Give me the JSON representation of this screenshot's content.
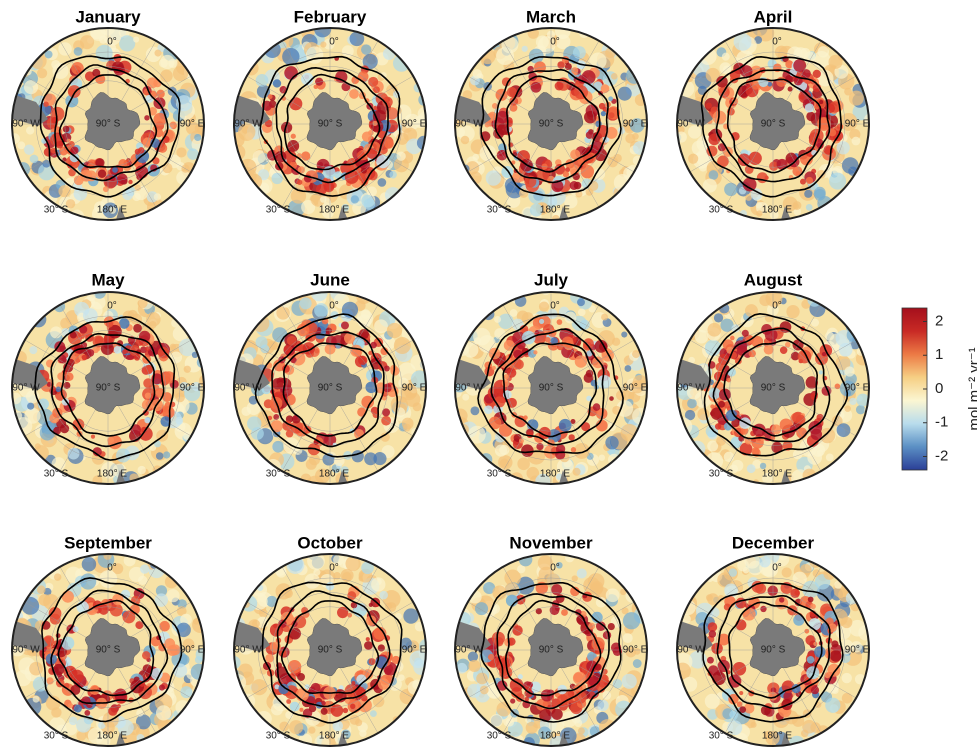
{
  "panels": [
    "January",
    "February",
    "March",
    "April",
    "May",
    "June",
    "July",
    "August",
    "September",
    "October",
    "November",
    "December"
  ],
  "map_labels": {
    "top": "0°",
    "west": "90° W",
    "pole": "90° S",
    "east": "90° E",
    "lat": "30° S",
    "bottom": "180° E"
  },
  "colorbar": {
    "label": "mol m⁻² yr⁻¹",
    "lim": [
      -2.4,
      2.4
    ],
    "ticks": [
      -2,
      -1,
      0,
      1,
      2
    ],
    "colors": [
      "#2a3f97",
      "#5b8fc4",
      "#b8dcec",
      "#fbf6d2",
      "#f6cf84",
      "#ec7a45",
      "#c82a25",
      "#a50f1c"
    ]
  }
}
